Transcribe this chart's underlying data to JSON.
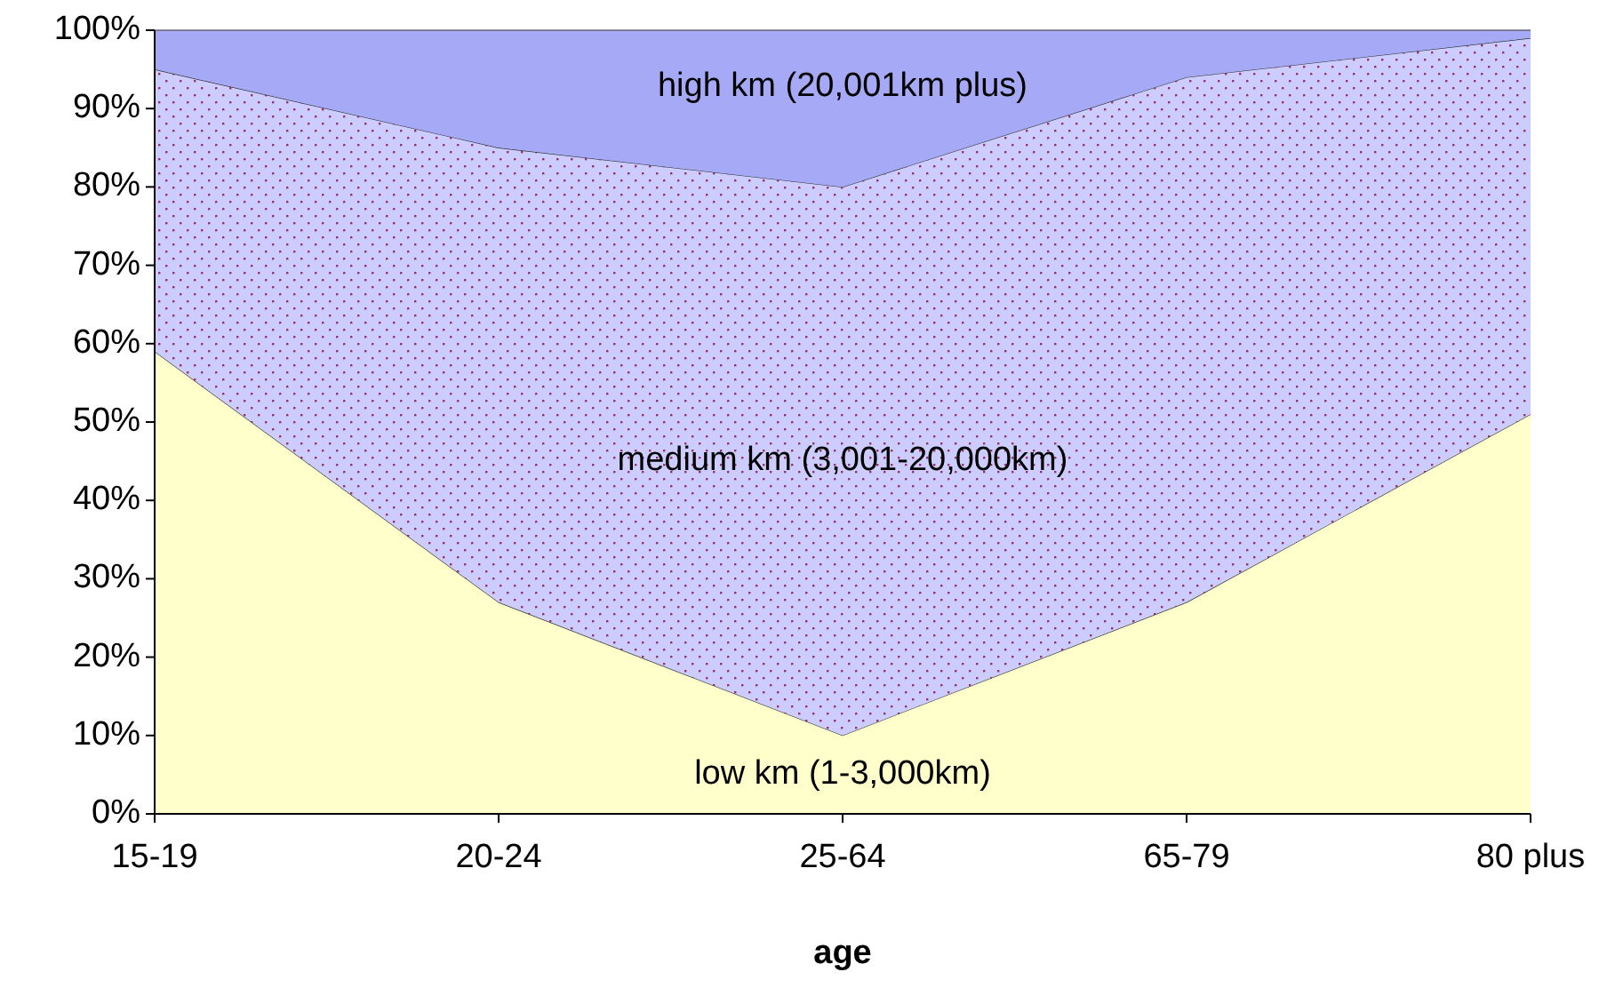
{
  "chart_data": {
    "type": "area",
    "stacked": true,
    "xlabel": "age",
    "categories": [
      "15-19",
      "20-24",
      "25-64",
      "65-79",
      "80 plus"
    ],
    "series": [
      {
        "name": "low km (1-3,000km)",
        "color": "#ffffcc",
        "values": [
          59,
          27,
          10,
          27,
          51
        ]
      },
      {
        "name": "medium km (3,001-20,000km)",
        "color": "#ccccff",
        "values": [
          36,
          58,
          70,
          67,
          48
        ]
      },
      {
        "name": "high km (20,001km plus)",
        "color": "#a6aaf6",
        "values": [
          5,
          15,
          20,
          6,
          1
        ]
      }
    ],
    "ylim": [
      0,
      100
    ],
    "yticks": [
      {
        "value": 0,
        "label": "0%"
      },
      {
        "value": 10,
        "label": "10%"
      },
      {
        "value": 20,
        "label": "20%"
      },
      {
        "value": 30,
        "label": "30%"
      },
      {
        "value": 40,
        "label": "40%"
      },
      {
        "value": 50,
        "label": "50%"
      },
      {
        "value": 60,
        "label": "60%"
      },
      {
        "value": 70,
        "label": "70%"
      },
      {
        "value": 80,
        "label": "80%"
      },
      {
        "value": 90,
        "label": "90%"
      },
      {
        "value": 100,
        "label": "100%"
      }
    ],
    "grid": false,
    "legend": false
  }
}
